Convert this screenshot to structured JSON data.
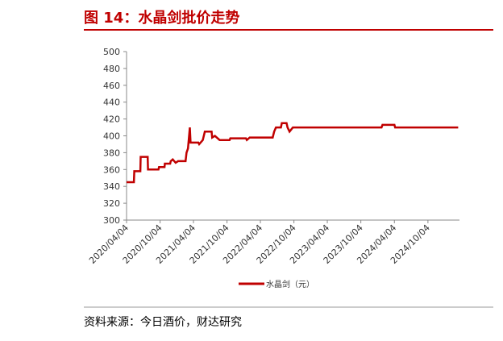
{
  "chart_data": {
    "type": "line",
    "title": "图 14：水晶剑批价走势",
    "source": "资料来源：今日酒价，财达研究",
    "x": [
      "2020/04/04",
      "2020/05/14",
      "2020/05/16",
      "2020/06/18",
      "2020/06/20",
      "2020/07/28",
      "2020/07/30",
      "2020/09/25",
      "2020/09/28",
      "2020/10/28",
      "2020/10/30",
      "2020/11/28",
      "2020/12/01",
      "2020/12/12",
      "2020/12/28",
      "2021/01/10",
      "2021/02/20",
      "2021/02/25",
      "2021/03/05",
      "2021/03/15",
      "2021/03/19",
      "2021/05/01",
      "2021/05/05",
      "2021/05/25",
      "2021/06/05",
      "2021/07/12",
      "2021/07/15",
      "2021/07/30",
      "2021/08/25",
      "2021/10/18",
      "2021/10/22",
      "2022/01/15",
      "2022/01/20",
      "2022/02/05",
      "2022/06/10",
      "2022/06/18",
      "2022/06/28",
      "2022/07/25",
      "2022/07/30",
      "2022/08/25",
      "2022/08/30",
      "2022/09/10",
      "2022/09/28",
      "2024/01/25",
      "2024/01/30",
      "2024/04/04",
      "2024/04/08",
      "2025/03/18"
    ],
    "series": [
      {
        "name": "水晶剑（元）",
        "color": "#c00000",
        "values": [
          345,
          345,
          358,
          358,
          375,
          375,
          360,
          360,
          363,
          363,
          367,
          367,
          370,
          372,
          368,
          370,
          370,
          380,
          385,
          410,
          392,
          392,
          390,
          395,
          405,
          405,
          398,
          400,
          395,
          395,
          397,
          397,
          395,
          398,
          398,
          405,
          410,
          410,
          415,
          415,
          410,
          405,
          410,
          410,
          413,
          413,
          410,
          410
        ]
      }
    ],
    "xlim": [
      "2020/04/04",
      "2025/03/25"
    ],
    "xticks": [
      "2020/04/04",
      "2020/10/04",
      "2021/04/04",
      "2021/10/04",
      "2022/04/04",
      "2022/10/04",
      "2023/04/04",
      "2023/10/04",
      "2024/04/04",
      "2024/10/04"
    ],
    "ylim": [
      300,
      500
    ],
    "yticks": [
      300,
      320,
      340,
      360,
      380,
      400,
      420,
      440,
      460,
      480,
      500
    ],
    "grid": false
  }
}
